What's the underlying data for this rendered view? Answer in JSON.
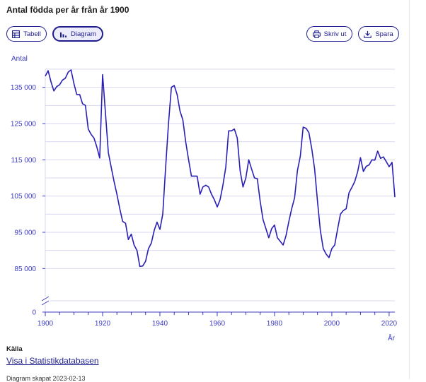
{
  "header": {
    "title": "Antal födda per år från år 1900"
  },
  "toolbar": {
    "table_label": "Tabell",
    "chart_label": "Diagram",
    "print_label": "Skriv ut",
    "save_label": "Spara"
  },
  "source": {
    "label": "Källa",
    "link_text": "Visa i Statistikdatabasen",
    "footnote": "Diagram skapat 2023-02-13"
  },
  "colors": {
    "accent": "#1c1c8c",
    "line": "#2a1fb5",
    "grid": "#d9d9f0",
    "axis": "#3b3bc4"
  },
  "chart_data": {
    "type": "line",
    "title": "Antal födda per år från år 1900",
    "ylabel": "Antal",
    "xlabel": "År",
    "xlim": [
      1900,
      2022
    ],
    "x_ticks": [
      1900,
      1920,
      1940,
      1960,
      1980,
      2000,
      2020
    ],
    "y_tick_values": [
      0,
      85000,
      95000,
      105000,
      115000,
      125000,
      135000
    ],
    "y_tick_labels": [
      "0",
      "85 000",
      "95 000",
      "105 000",
      "115 000",
      "125 000",
      "135 000"
    ],
    "ylim_display": [
      80000,
      140000
    ],
    "axis_break": true,
    "series": [
      {
        "name": "Antal födda",
        "x": [
          1900,
          1901,
          1902,
          1903,
          1904,
          1905,
          1906,
          1907,
          1908,
          1909,
          1910,
          1911,
          1912,
          1913,
          1914,
          1915,
          1916,
          1917,
          1918,
          1919,
          1920,
          1921,
          1922,
          1923,
          1924,
          1925,
          1926,
          1927,
          1928,
          1929,
          1930,
          1931,
          1932,
          1933,
          1934,
          1935,
          1936,
          1937,
          1938,
          1939,
          1940,
          1941,
          1942,
          1943,
          1944,
          1945,
          1946,
          1947,
          1948,
          1949,
          1950,
          1951,
          1952,
          1953,
          1954,
          1955,
          1956,
          1957,
          1958,
          1959,
          1960,
          1961,
          1962,
          1963,
          1964,
          1965,
          1966,
          1967,
          1968,
          1969,
          1970,
          1971,
          1972,
          1973,
          1974,
          1975,
          1976,
          1977,
          1978,
          1979,
          1980,
          1981,
          1982,
          1983,
          1984,
          1985,
          1986,
          1987,
          1988,
          1989,
          1990,
          1991,
          1992,
          1993,
          1994,
          1995,
          1996,
          1997,
          1998,
          1999,
          2000,
          2001,
          2002,
          2003,
          2004,
          2005,
          2006,
          2007,
          2008,
          2009,
          2010,
          2011,
          2012,
          2013,
          2014,
          2015,
          2016,
          2017,
          2018,
          2019,
          2020,
          2021,
          2022
        ],
        "values": [
          138100,
          139600,
          136500,
          134000,
          135200,
          135700,
          137000,
          137500,
          139200,
          139800,
          136000,
          133000,
          133000,
          130500,
          130000,
          123500,
          122000,
          121000,
          118500,
          115500,
          138500,
          128000,
          117000,
          113000,
          109000,
          105500,
          101500,
          98000,
          97500,
          93000,
          94500,
          91500,
          90000,
          85600,
          85700,
          87000,
          90500,
          92000,
          95500,
          97800,
          95800,
          100000,
          113000,
          125000,
          135000,
          135500,
          133000,
          128500,
          126000,
          120000,
          115000,
          110500,
          110500,
          110500,
          105500,
          107500,
          108000,
          107500,
          105500,
          104000,
          102000,
          104000,
          108000,
          113000,
          123000,
          123000,
          123500,
          121000,
          112000,
          107500,
          110000,
          115000,
          112500,
          110000,
          109800,
          103500,
          98500,
          96000,
          93500,
          96000,
          97000,
          93500,
          92500,
          91500,
          94000,
          98000,
          101500,
          104500,
          112000,
          116000,
          124000,
          123700,
          122500,
          118000,
          112500,
          103500,
          95500,
          90500,
          89000,
          88000,
          90500,
          91500,
          95800,
          100000,
          101000,
          101500,
          105900,
          107400,
          109000,
          111700,
          115600,
          111800,
          113200,
          113600,
          115000,
          114900,
          117400,
          115400,
          115800,
          114500,
          113100,
          114300,
          104700
        ]
      }
    ]
  }
}
